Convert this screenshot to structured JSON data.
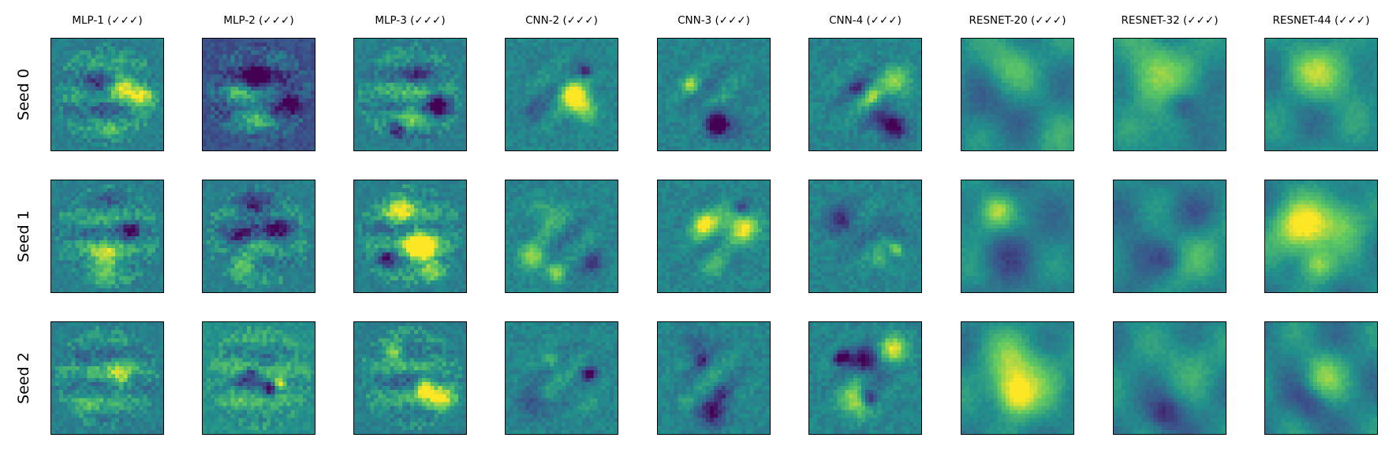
{
  "figure": {
    "columns": [
      "MLP-1 (✓✓✓)",
      "MLP-2 (✓✓✓)",
      "MLP-3 (✓✓✓)",
      "CNN-2 (✓✓✓)",
      "CNN-3 (✓✓✓)",
      "CNN-4 (✓✓✓)",
      "RESNET-20 (✓✓✓)",
      "RESNET-32 (✓✓✓)",
      "RESNET-44 (✓✓✓)"
    ],
    "rows": [
      "Seed 0",
      "Seed 1",
      "Seed 2"
    ],
    "colormap": "viridis",
    "colormap_stops": [
      "#440154",
      "#3b528b",
      "#21918c",
      "#5ec962",
      "#fde725"
    ]
  }
}
